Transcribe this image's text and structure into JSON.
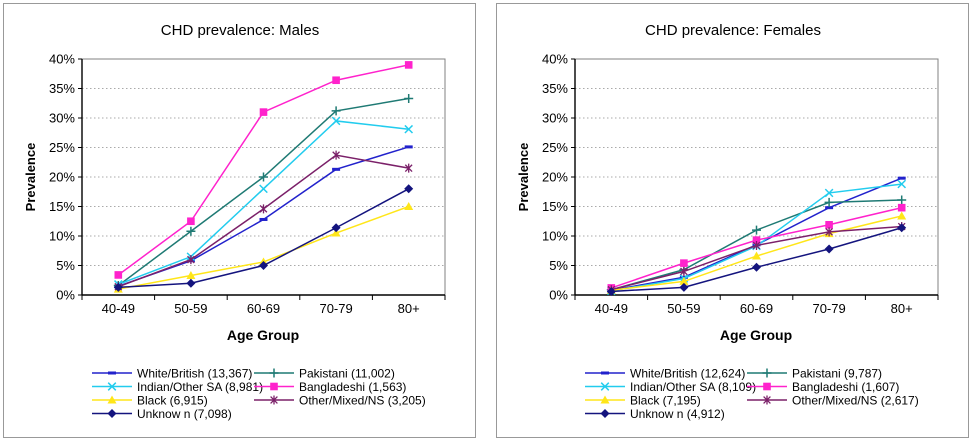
{
  "chart_data": [
    {
      "type": "line",
      "title": "CHD prevalence: Males",
      "xlabel": "Age Group",
      "ylabel": "Prevalence",
      "categories": [
        "40-49",
        "50-59",
        "60-69",
        "70-79",
        "80+"
      ],
      "y_ticks": [
        "0%",
        "5%",
        "10%",
        "15%",
        "20%",
        "25%",
        "30%",
        "35%",
        "40%"
      ],
      "ylim": [
        0,
        40
      ],
      "grid": "dotted-horizontal",
      "legend_position": "bottom-two-columns",
      "legend_columns": [
        [
          0,
          2,
          4,
          6
        ],
        [
          1,
          3,
          5
        ]
      ],
      "series": [
        {
          "name": "White/British (13,367)",
          "color": "#2222CC",
          "marker": "dash",
          "values": [
            1.5,
            5.8,
            12.8,
            21.3,
            25.1
          ]
        },
        {
          "name": "Pakistani (11,002)",
          "color": "#1F7A74",
          "marker": "plus",
          "values": [
            1.6,
            10.8,
            20.0,
            31.2,
            33.3
          ]
        },
        {
          "name": "Indian/Other SA (8,981)",
          "color": "#22CCEE",
          "marker": "x",
          "values": [
            1.8,
            6.5,
            18.0,
            29.5,
            28.1
          ]
        },
        {
          "name": "Bangladeshi (1,563)",
          "color": "#FF22CC",
          "marker": "square",
          "values": [
            3.4,
            12.5,
            31.0,
            36.4,
            39.0
          ]
        },
        {
          "name": "Black (6,915)",
          "color": "#FFE619",
          "marker": "triangle",
          "values": [
            1.0,
            3.3,
            5.6,
            10.5,
            15.0
          ]
        },
        {
          "name": "Other/Mixed/NS (3,205)",
          "color": "#7B2069",
          "marker": "asterisk",
          "values": [
            1.4,
            6.0,
            14.6,
            23.7,
            21.5
          ]
        },
        {
          "name": "Unknow n (7,098)",
          "color": "#14147E",
          "marker": "diamond",
          "values": [
            1.3,
            2.0,
            5.0,
            11.4,
            18.0
          ]
        }
      ]
    },
    {
      "type": "line",
      "title": "CHD prevalence: Females",
      "xlabel": "Age Group",
      "ylabel": "Prevalence",
      "categories": [
        "40-49",
        "50-59",
        "60-69",
        "70-79",
        "80+"
      ],
      "y_ticks": [
        "0%",
        "5%",
        "10%",
        "15%",
        "20%",
        "25%",
        "30%",
        "35%",
        "40%"
      ],
      "ylim": [
        0,
        40
      ],
      "grid": "dotted-horizontal",
      "legend_position": "bottom-two-columns",
      "legend_columns": [
        [
          0,
          2,
          4,
          6
        ],
        [
          1,
          3,
          5
        ]
      ],
      "series": [
        {
          "name": "White/British (12,624)",
          "color": "#2222CC",
          "marker": "dash",
          "values": [
            0.8,
            3.0,
            8.5,
            14.8,
            19.8
          ]
        },
        {
          "name": "Pakistani (9,787)",
          "color": "#1F7A74",
          "marker": "plus",
          "values": [
            0.9,
            4.3,
            11.0,
            15.7,
            16.1
          ]
        },
        {
          "name": "Indian/Other SA (8,109)",
          "color": "#22CCEE",
          "marker": "x",
          "values": [
            0.7,
            2.8,
            8.3,
            17.3,
            18.8
          ]
        },
        {
          "name": "Bangladeshi (1,607)",
          "color": "#FF22CC",
          "marker": "square",
          "values": [
            1.2,
            5.4,
            9.3,
            11.9,
            14.8
          ]
        },
        {
          "name": "Black (7,195)",
          "color": "#FFE619",
          "marker": "triangle",
          "values": [
            0.8,
            2.3,
            6.6,
            10.4,
            13.4
          ]
        },
        {
          "name": "Other/Mixed/NS (2,617)",
          "color": "#7B2069",
          "marker": "asterisk",
          "values": [
            0.9,
            4.0,
            8.4,
            10.7,
            11.6
          ]
        },
        {
          "name": "Unknow n (4,912)",
          "color": "#14147E",
          "marker": "diamond",
          "values": [
            0.6,
            1.3,
            4.7,
            7.8,
            11.4
          ]
        }
      ]
    }
  ],
  "style": {
    "plot_border_color": "#808080",
    "axis_color": "#000000",
    "gridline_color": "#AAAAAA",
    "background": "#FFFFFF"
  }
}
